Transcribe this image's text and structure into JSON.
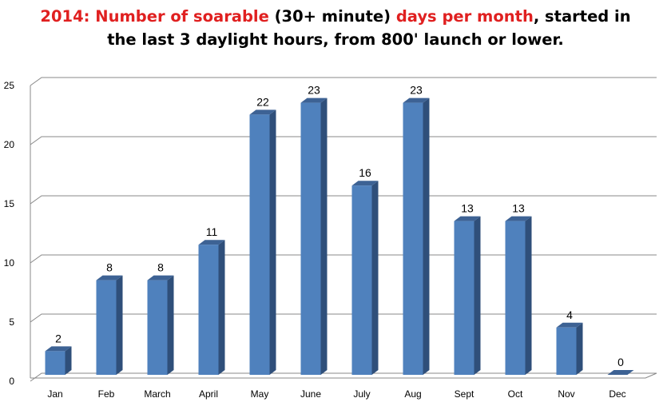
{
  "title": {
    "lines": [
      [
        {
          "text": "2014: Number of soarable ",
          "red": true
        },
        {
          "text": "(30+ minute) ",
          "red": false
        },
        {
          "text": "days per month",
          "red": true
        },
        {
          "text": ", started in",
          "red": false
        }
      ],
      [
        {
          "text": "the last 3 daylight hours, from 800' launch or lower.",
          "red": false
        }
      ]
    ]
  },
  "colors": {
    "title_accent": "#e02020",
    "bar_front": "#4f81bd",
    "bar_side": "#2f4f7a",
    "bar_top": "#3d6294",
    "grid": "#888888"
  },
  "chart_data": {
    "type": "bar",
    "categories": [
      "Jan",
      "Feb",
      "March",
      "April",
      "May",
      "June",
      "July",
      "Aug",
      "Sept",
      "Oct",
      "Nov",
      "Dec"
    ],
    "values": [
      2,
      8,
      8,
      11,
      22,
      23,
      16,
      23,
      13,
      13,
      4,
      0
    ],
    "y_ticks": [
      0,
      5,
      10,
      15,
      20,
      25
    ],
    "ylim": [
      0,
      25
    ],
    "grid": true,
    "legend": "none",
    "data_labels": true,
    "style": "3d-column"
  }
}
